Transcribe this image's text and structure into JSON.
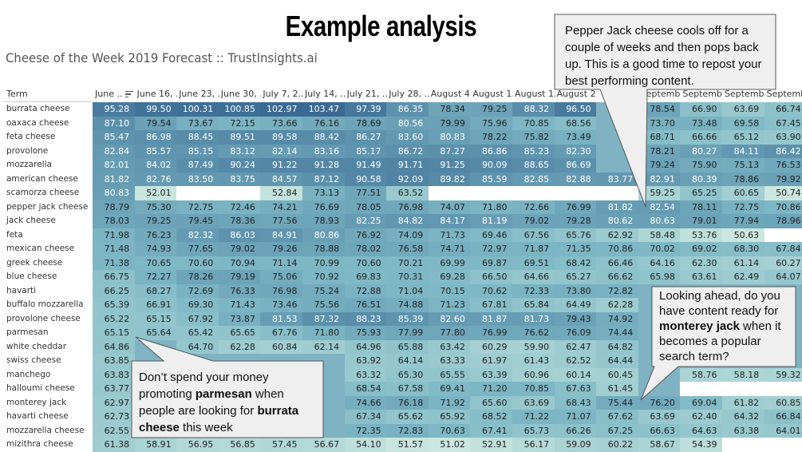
{
  "title": "Example analysis",
  "subtitle": "Cheese of the Week 2019 Forecast :: TrustInsights.ai",
  "table": {
    "term_header": "Term",
    "sort_icon": "sort-descending-icon",
    "columns": [
      "June ..",
      "June 16, ..",
      "June 23, ..",
      "June 30, ..",
      "July 7, 2..",
      "July 14, ..",
      "July 21, ..",
      "July 28, ..",
      "August 4..",
      "August 1..",
      "August 1..",
      "August 2..",
      null,
      "Septemb..",
      "Septemb..",
      "Septemb..",
      "Septemb.."
    ],
    "color_scale": {
      "low": "#cfe9e0",
      "mid": "#7fb9c6",
      "high": "#3a6a93"
    },
    "rows": [
      {
        "term": "burrata cheese",
        "values": [
          95.28,
          99.5,
          100.31,
          100.85,
          102.97,
          103.47,
          97.39,
          86.35,
          78.34,
          79.25,
          88.32,
          96.5,
          null,
          78.54,
          66.9,
          63.69,
          66.74
        ]
      },
      {
        "term": "oaxaca cheese",
        "values": [
          87.1,
          79.54,
          73.67,
          72.15,
          73.66,
          76.16,
          78.69,
          80.56,
          79.99,
          75.96,
          70.85,
          68.56,
          null,
          73.7,
          73.48,
          69.58,
          67.45
        ]
      },
      {
        "term": "feta cheese",
        "values": [
          85.47,
          86.98,
          88.45,
          89.51,
          89.58,
          88.42,
          86.27,
          83.6,
          80.83,
          78.22,
          75.82,
          73.49,
          null,
          68.71,
          66.66,
          65.12,
          63.9
        ]
      },
      {
        "term": "provolone",
        "values": [
          82.84,
          85.57,
          85.15,
          83.12,
          82.14,
          83.16,
          85.17,
          86.72,
          87.27,
          86.86,
          85.23,
          82.3,
          null,
          78.21,
          80.27,
          84.11,
          86.42
        ]
      },
      {
        "term": "mozzarella",
        "values": [
          82.01,
          84.02,
          87.49,
          90.24,
          91.22,
          91.28,
          91.49,
          91.71,
          91.25,
          90.09,
          88.65,
          86.69,
          null,
          79.24,
          75.9,
          75.13,
          76.53
        ]
      },
      {
        "term": "american cheese",
        "values": [
          81.82,
          82.76,
          83.5,
          83.75,
          84.57,
          87.12,
          90.58,
          92.09,
          89.82,
          85.59,
          82.85,
          82.88,
          83.77,
          82.91,
          80.39,
          78.86,
          79.92
        ]
      },
      {
        "term": "scamorza cheese",
        "values": [
          80.83,
          52.01,
          "",
          "",
          52.84,
          73.13,
          77.51,
          63.52,
          "",
          "",
          "",
          "",
          "",
          59.25,
          65.25,
          60.65,
          50.74
        ]
      },
      {
        "term": "pepper jack cheese",
        "values": [
          78.79,
          75.3,
          72.75,
          72.46,
          74.21,
          76.69,
          78.05,
          76.98,
          74.07,
          71.8,
          72.66,
          76.99,
          81.82,
          82.54,
          78.11,
          72.75,
          70.86
        ]
      },
      {
        "term": "jack cheese",
        "values": [
          78.03,
          79.25,
          79.45,
          78.36,
          77.56,
          78.93,
          82.25,
          84.82,
          84.17,
          81.19,
          79.02,
          79.28,
          80.62,
          80.63,
          79.01,
          77.94,
          78.96
        ]
      },
      {
        "term": "feta",
        "values": [
          71.98,
          76.23,
          82.32,
          86.03,
          84.91,
          80.86,
          76.92,
          74.09,
          71.73,
          69.46,
          67.56,
          65.76,
          62.92,
          58.48,
          53.76,
          50.63,
          ""
        ]
      },
      {
        "term": "mexican cheese",
        "values": [
          71.48,
          74.93,
          77.65,
          79.02,
          79.26,
          78.88,
          78.02,
          76.58,
          74.71,
          72.97,
          71.87,
          71.35,
          70.86,
          70.02,
          69.02,
          68.3,
          67.84
        ]
      },
      {
        "term": "greek cheese",
        "values": [
          71.38,
          70.65,
          70.6,
          70.94,
          71.14,
          70.99,
          70.6,
          70.21,
          69.99,
          69.87,
          69.51,
          68.42,
          66.46,
          64.16,
          62.3,
          61.14,
          60.27
        ]
      },
      {
        "term": "blue cheese",
        "values": [
          66.75,
          72.27,
          78.26,
          79.19,
          75.06,
          70.92,
          69.83,
          70.31,
          69.28,
          66.5,
          64.66,
          65.27,
          66.62,
          65.98,
          63.61,
          62.49,
          64.07
        ]
      },
      {
        "term": "havarti",
        "values": [
          66.25,
          68.27,
          72.69,
          76.33,
          76.98,
          75.24,
          72.88,
          71.04,
          70.15,
          70.62,
          72.33,
          73.8,
          72.82,
          null,
          null,
          null,
          null
        ]
      },
      {
        "term": "buffalo mozzarella",
        "values": [
          65.39,
          66.91,
          69.3,
          71.43,
          73.46,
          75.56,
          76.51,
          74.88,
          71.23,
          67.81,
          65.84,
          64.49,
          62.28,
          null,
          null,
          null,
          null
        ]
      },
      {
        "term": "provolone cheese",
        "values": [
          65.22,
          65.15,
          67.92,
          73.87,
          81.53,
          87.32,
          88.23,
          85.39,
          82.6,
          81.87,
          81.73,
          79.43,
          74.92,
          null,
          null,
          null,
          null
        ]
      },
      {
        "term": "parmesan",
        "values": [
          65.15,
          65.64,
          65.42,
          65.65,
          67.76,
          71.8,
          75.93,
          77.99,
          77.8,
          76.99,
          76.62,
          76.09,
          74.44,
          null,
          null,
          null,
          null
        ]
      },
      {
        "term": "white cheddar",
        "values": [
          64.86,
          null,
          64.7,
          62.28,
          60.84,
          62.14,
          64.96,
          65.88,
          63.42,
          60.29,
          59.9,
          62.47,
          64.82,
          null,
          null,
          null,
          null
        ]
      },
      {
        "term": "swiss cheese",
        "values": [
          63.85,
          null,
          null,
          null,
          null,
          null,
          63.92,
          64.14,
          63.33,
          61.97,
          61.43,
          62.52,
          64.44,
          null,
          null,
          null,
          null
        ]
      },
      {
        "term": "manchego",
        "values": [
          63.83,
          null,
          null,
          null,
          null,
          null,
          63.32,
          65.3,
          65.55,
          63.39,
          60.96,
          60.14,
          60.45,
          null,
          58.76,
          58.18,
          59.32
        ]
      },
      {
        "term": "halloumi cheese",
        "values": [
          63.77,
          null,
          null,
          null,
          null,
          null,
          68.54,
          67.58,
          69.41,
          71.2,
          70.85,
          67.63,
          61.45,
          null,
          "",
          "",
          ""
        ]
      },
      {
        "term": "monterey jack",
        "values": [
          62.97,
          null,
          null,
          null,
          null,
          null,
          74.66,
          76.18,
          71.92,
          65.6,
          63.69,
          68.43,
          75.44,
          76.2,
          69.04,
          61.82,
          60.85
        ]
      },
      {
        "term": "havarti cheese",
        "values": [
          62.73,
          null,
          null,
          null,
          null,
          null,
          67.34,
          65.62,
          65.92,
          68.52,
          71.22,
          71.07,
          67.62,
          63.69,
          62.4,
          64.32,
          66.84
        ]
      },
      {
        "term": "mozzarella cheese",
        "values": [
          62.55,
          null,
          null,
          null,
          null,
          null,
          72.35,
          72.83,
          70.63,
          67.41,
          65.73,
          66.26,
          67.25,
          66.63,
          64.63,
          63.38,
          64.01
        ]
      },
      {
        "term": "mizithra cheese",
        "values": [
          61.38,
          58.91,
          56.95,
          56.85,
          57.45,
          56.67,
          54.1,
          51.57,
          51.02,
          52.91,
          56.17,
          59.09,
          60.22,
          58.67,
          54.39,
          "",
          ""
        ]
      }
    ]
  },
  "callouts": {
    "pepper_jack": {
      "text": "Pepper Jack cheese cools off for a couple of weeks and then pops back up. This is a good time to repost your best performing content."
    },
    "parmesan": {
      "t1": "Don’t spend your money promoting ",
      "b1": "parmesan",
      "t2": " when people are looking for ",
      "b2": "burrata cheese",
      "t3": " this week"
    },
    "monterey": {
      "t1": "Looking ahead, do you have content ready for ",
      "b1": "monterey jack",
      "t2": " when it becomes a popular search term?"
    }
  }
}
